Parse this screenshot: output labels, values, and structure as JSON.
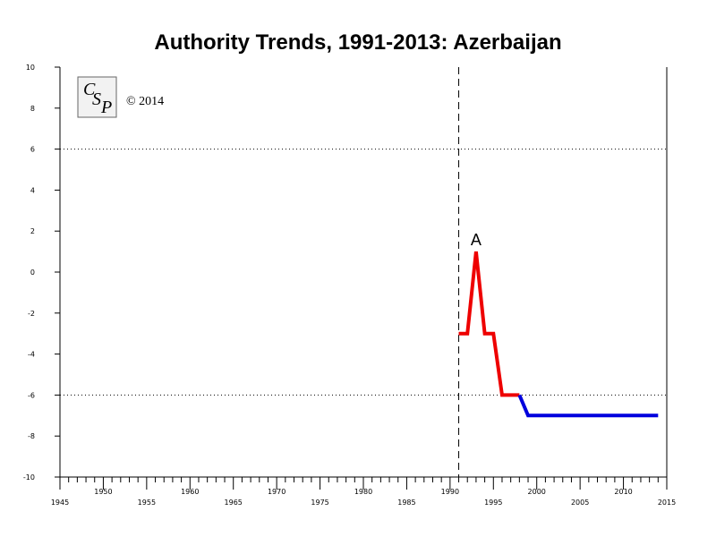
{
  "chart_data": {
    "type": "line",
    "title": "Authority Trends, 1991-2013: Azerbaijan",
    "xlabel": "",
    "ylabel": "",
    "xlim": [
      1945,
      2015
    ],
    "ylim": [
      -10,
      10
    ],
    "x_ticks_upper": [
      1950,
      1960,
      1970,
      1980,
      1990,
      2000,
      2010
    ],
    "x_ticks_lower": [
      1945,
      1955,
      1965,
      1975,
      1985,
      1995,
      2005,
      2015
    ],
    "y_ticks": [
      10,
      8,
      6,
      4,
      2,
      0,
      -2,
      -4,
      -6,
      -8,
      -10
    ],
    "reference_lines": [
      6,
      -6
    ],
    "event_line_x": 1991,
    "grid": false,
    "series": [
      {
        "color": "#ee0000",
        "points": [
          [
            1991,
            -3
          ],
          [
            1992,
            -3
          ],
          [
            1993,
            1
          ],
          [
            1994,
            -3
          ],
          [
            1995,
            -3
          ],
          [
            1996,
            -6
          ],
          [
            1998,
            -6
          ]
        ]
      },
      {
        "color": "#0000dd",
        "points": [
          [
            1998,
            -6
          ],
          [
            1999,
            -7
          ],
          [
            2014,
            -7
          ]
        ]
      }
    ],
    "annotations": [
      {
        "text": "A",
        "x": 1993,
        "y": 1
      }
    ],
    "logo_text": "CSP",
    "copyright": "© 2014"
  }
}
